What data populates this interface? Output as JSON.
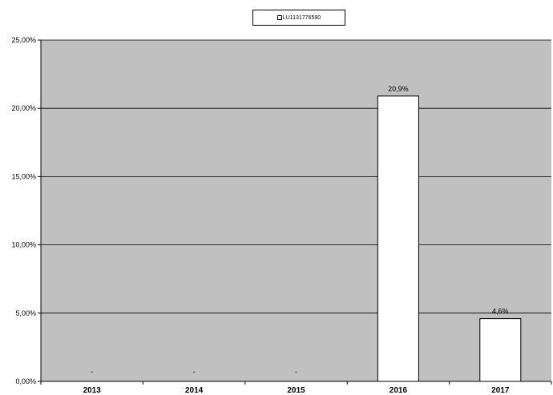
{
  "chart_data": {
    "type": "bar",
    "categories": [
      "2013",
      "2014",
      "2015",
      "2016",
      "2017"
    ],
    "series": [
      {
        "name": "LU1131776590",
        "values": [
          null,
          null,
          null,
          20.9,
          4.6
        ],
        "labels": [
          "-",
          "-",
          "-",
          "20,9%",
          "4,6%"
        ]
      }
    ],
    "y_ticks": [
      "0,00%",
      "5,00%",
      "10,00%",
      "15,00%",
      "20,00%",
      "25,00%"
    ],
    "ylim": [
      0,
      25
    ],
    "grid": true,
    "legend_position": "top-center",
    "colors": {
      "plot_bg": "#c0c0c0",
      "bar_fill": "#ffffff",
      "bar_stroke": "#000000"
    }
  }
}
